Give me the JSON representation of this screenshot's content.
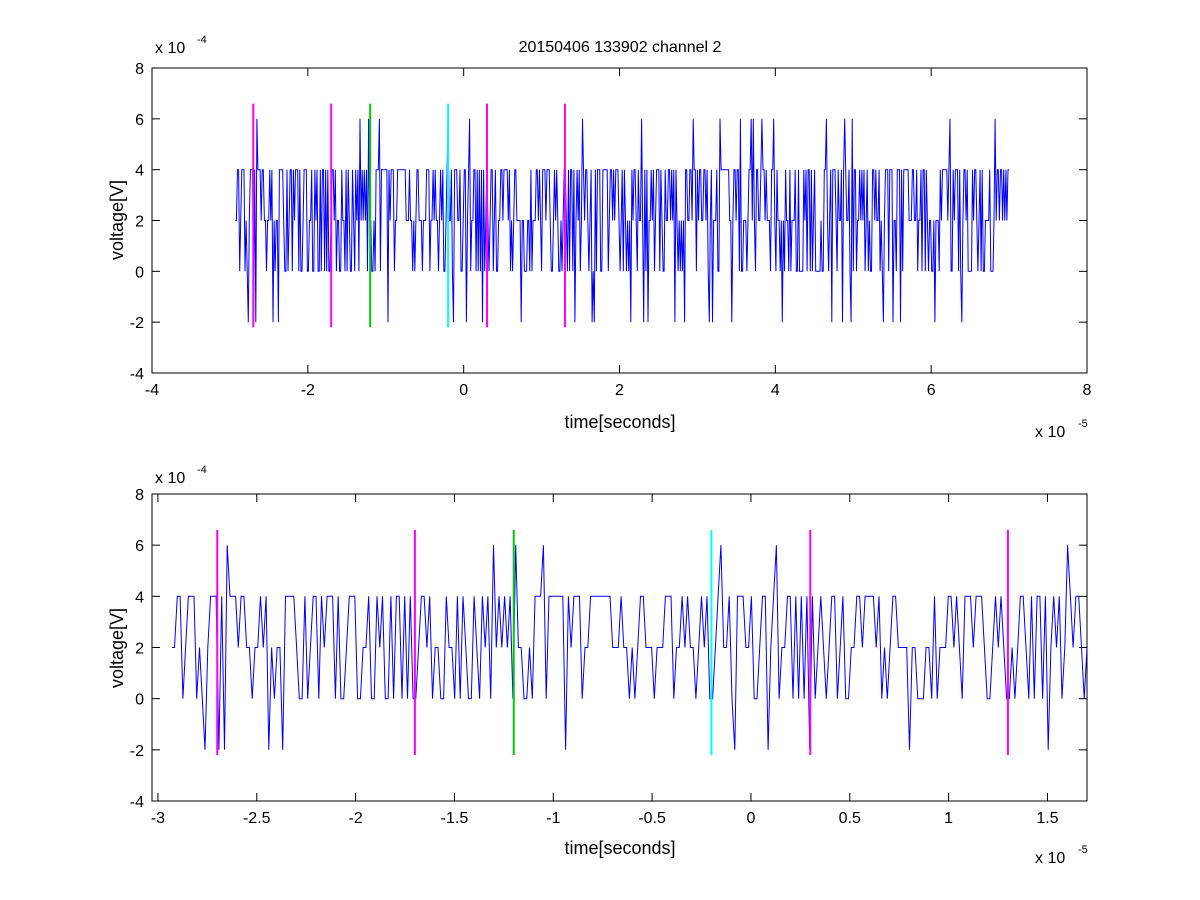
{
  "figure_title": "20150406 133902 channel 2",
  "chart_data": [
    {
      "type": "line",
      "xlabel": "time[seconds]",
      "ylabel": "voltage[V]",
      "x_multiplier_label": "x 10",
      "x_multiplier_exp": "-5",
      "y_multiplier_label": "x 10",
      "y_multiplier_exp": "-4",
      "xlim": [
        -4e-05,
        8e-05
      ],
      "ylim": [
        -0.0004,
        0.0008
      ],
      "xticks": [
        -4e-05,
        -2e-05,
        0,
        2e-05,
        4e-05,
        6e-05,
        8e-05
      ],
      "xtick_labels": [
        "-4",
        "-2",
        "0",
        "2",
        "4",
        "6",
        "8"
      ],
      "yticks": [
        -0.0004,
        -0.0002,
        0,
        0.0002,
        0.0004,
        0.0006,
        0.0008
      ],
      "ytick_labels": [
        "-4",
        "-2",
        "0",
        "2",
        "4",
        "6",
        "8"
      ],
      "grid": false,
      "signal": {
        "color": "#0000ff",
        "x_start": -2.93e-05,
        "x_end": 7e-05,
        "baseline": 0.0002,
        "levels": [
          -0.0002,
          0,
          0.0002,
          0.0004,
          0.0006
        ]
      },
      "markers": [
        {
          "x": -2.7e-05,
          "color": "#ff00ff",
          "ymin": -0.00022,
          "ymax": 0.00066
        },
        {
          "x": -1.7e-05,
          "color": "#ff00ff",
          "ymin": -0.00022,
          "ymax": 0.00066
        },
        {
          "x": -1.2e-05,
          "color": "#00cc00",
          "ymin": -0.00022,
          "ymax": 0.00066
        },
        {
          "x": -2e-06,
          "color": "#00ffff",
          "ymin": -0.00022,
          "ymax": 0.00066
        },
        {
          "x": 3e-06,
          "color": "#ff00ff",
          "ymin": -0.00022,
          "ymax": 0.00066
        },
        {
          "x": 1.3e-05,
          "color": "#ff00ff",
          "ymin": -0.00022,
          "ymax": 0.00066
        }
      ]
    },
    {
      "type": "line",
      "xlabel": "time[seconds]",
      "ylabel": "voltage[V]",
      "x_multiplier_label": "x 10",
      "x_multiplier_exp": "-5",
      "y_multiplier_label": "x 10",
      "y_multiplier_exp": "-4",
      "xlim": [
        -3.03e-05,
        1.7e-05
      ],
      "ylim": [
        -0.0004,
        0.0008
      ],
      "xticks": [
        -3e-05,
        -2.5e-05,
        -2e-05,
        -1.5e-05,
        -1e-05,
        -5e-06,
        0,
        5e-06,
        1e-05,
        1.5e-05
      ],
      "xtick_labels": [
        "-3",
        "-2.5",
        "-2",
        "-1.5",
        "-1",
        "-0.5",
        "0",
        "0.5",
        "1",
        "1.5"
      ],
      "yticks": [
        -0.0004,
        -0.0002,
        0,
        0.0002,
        0.0004,
        0.0006,
        0.0008
      ],
      "ytick_labels": [
        "-4",
        "-2",
        "0",
        "2",
        "4",
        "6",
        "8"
      ],
      "grid": false,
      "signal": {
        "color": "#0000ff",
        "x_start": -2.93e-05,
        "x_end": 1.7e-05,
        "baseline": 0.0002,
        "levels": [
          -0.0002,
          0,
          0.0002,
          0.0004,
          0.0006
        ]
      },
      "markers": [
        {
          "x": -2.7e-05,
          "color": "#ff00ff",
          "ymin": -0.00022,
          "ymax": 0.00066
        },
        {
          "x": -1.7e-05,
          "color": "#ff00ff",
          "ymin": -0.00022,
          "ymax": 0.00066
        },
        {
          "x": -1.2e-05,
          "color": "#00cc00",
          "ymin": -0.00022,
          "ymax": 0.00066
        },
        {
          "x": -2e-06,
          "color": "#00ffff",
          "ymin": -0.00022,
          "ymax": 0.00066
        },
        {
          "x": 3e-06,
          "color": "#ff00ff",
          "ymin": -0.00022,
          "ymax": 0.00066
        },
        {
          "x": 1.3e-05,
          "color": "#ff00ff",
          "ymin": -0.00022,
          "ymax": 0.00066
        }
      ]
    }
  ]
}
